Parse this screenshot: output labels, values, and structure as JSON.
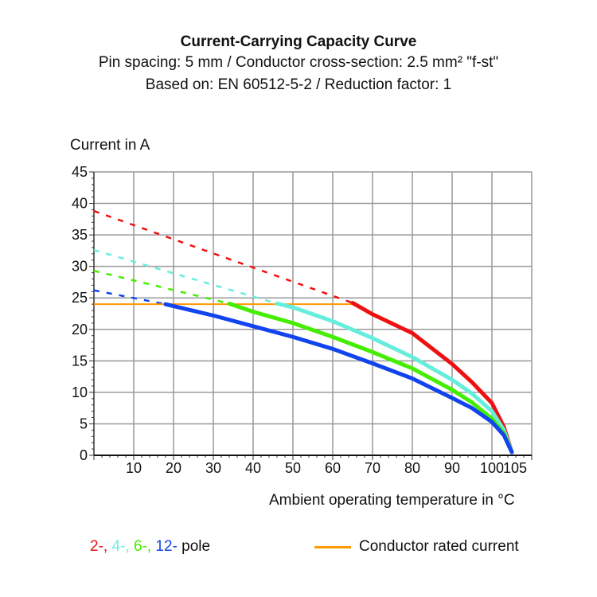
{
  "chart_data": {
    "type": "line",
    "title": "Current-Carrying Capacity Curve",
    "subtitle": [
      "Pin spacing: 5 mm / Conductor cross-section: 2.5 mm² \"f-st\"",
      "Based on: EN 60512-5-2 / Reduction factor: 1"
    ],
    "xlabel": "Ambient operating temperature in °C",
    "ylabel": "Current in A",
    "xlim": [
      0,
      110
    ],
    "ylim": [
      0,
      45
    ],
    "xticks": [
      10,
      20,
      30,
      40,
      50,
      60,
      70,
      80,
      90,
      100,
      105
    ],
    "yticks": [
      0,
      5,
      10,
      15,
      20,
      25,
      30,
      35,
      40,
      45
    ],
    "grid": true,
    "legend_poles": {
      "items": [
        "2-",
        "4-",
        "6-",
        "12-"
      ],
      "suffix": "pole"
    },
    "series": [
      {
        "name": "2-",
        "color": "#ee1111",
        "dashed": [
          [
            0,
            38.8
          ],
          [
            65,
            24.2
          ]
        ],
        "solid": [
          [
            65,
            24.2
          ],
          [
            70,
            22.4
          ],
          [
            80,
            19.4
          ],
          [
            90,
            14.5
          ],
          [
            95,
            11.6
          ],
          [
            100,
            8.3
          ],
          [
            103,
            4.5
          ],
          [
            105,
            0.5
          ]
        ]
      },
      {
        "name": "4-",
        "color": "#66eedd",
        "dashed": [
          [
            0,
            32.6
          ],
          [
            46,
            24.1
          ]
        ],
        "solid": [
          [
            46,
            24.1
          ],
          [
            50,
            23.5
          ],
          [
            60,
            21.3
          ],
          [
            70,
            18.6
          ],
          [
            80,
            15.6
          ],
          [
            90,
            12
          ],
          [
            95,
            9.8
          ],
          [
            100,
            7
          ],
          [
            103,
            4
          ],
          [
            105,
            0.5
          ]
        ]
      },
      {
        "name": "6-",
        "color": "#44ee00",
        "dashed": [
          [
            0,
            29.3
          ],
          [
            34,
            24.1
          ]
        ],
        "solid": [
          [
            34,
            24.1
          ],
          [
            40,
            22.8
          ],
          [
            50,
            21
          ],
          [
            60,
            18.8
          ],
          [
            70,
            16.4
          ],
          [
            80,
            13.8
          ],
          [
            90,
            10.4
          ],
          [
            95,
            8.4
          ],
          [
            100,
            5.8
          ],
          [
            103,
            3.5
          ],
          [
            105,
            0.5
          ]
        ]
      },
      {
        "name": "12-",
        "color": "#1144ee",
        "dashed": [
          [
            0,
            26.2
          ],
          [
            18,
            24
          ]
        ],
        "solid": [
          [
            18,
            24
          ],
          [
            30,
            22.2
          ],
          [
            40,
            20.5
          ],
          [
            50,
            18.8
          ],
          [
            60,
            16.9
          ],
          [
            70,
            14.6
          ],
          [
            80,
            12.2
          ],
          [
            90,
            9.1
          ],
          [
            95,
            7.5
          ],
          [
            100,
            5.3
          ],
          [
            103,
            3.2
          ],
          [
            105,
            0.5
          ]
        ]
      }
    ],
    "rated_current": {
      "name": "Conductor rated current",
      "color": "#ff9900",
      "points": [
        [
          0,
          24
        ],
        [
          65,
          24
        ]
      ]
    }
  }
}
